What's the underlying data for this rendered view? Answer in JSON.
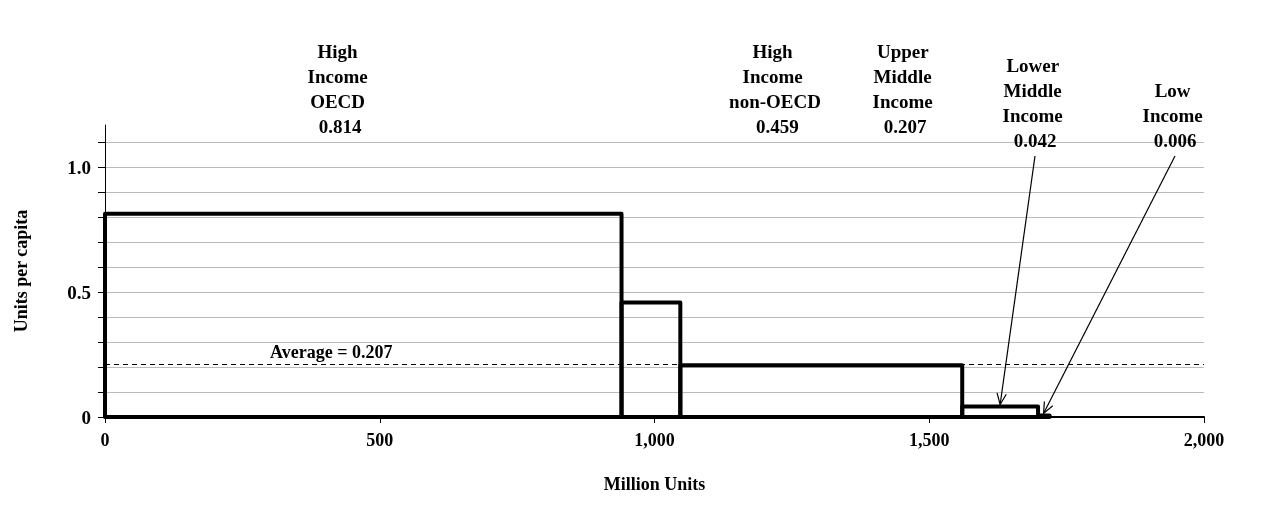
{
  "chart_data": {
    "type": "histogram",
    "xlabel": "Million Units",
    "ylabel": "Units per capita",
    "bins": [
      0,
      940,
      1047,
      1560,
      1698,
      1719
    ],
    "values": [
      0.814,
      0.459,
      0.207,
      0.042,
      0.006
    ],
    "color": "#000000",
    "annotations": [
      "High Income OECD 0.814",
      "High Income non-OECD 0.459",
      "Upper Middle Income 0.207",
      {
        "text": "Lower Middle Income 0.042",
        "x": 1629,
        "y": 0.042
      },
      {
        "text": "Low Income 0.006",
        "x": 1708,
        "y": 0.006
      }
    ],
    "xlim": [
      0,
      2000
    ],
    "xticks": [
      0,
      500,
      {
        "value": 1000,
        "label": "1,000"
      },
      {
        "value": 1500,
        "label": "1,500"
      },
      {
        "value": 2000,
        "label": "2,000"
      }
    ],
    "ylim": [
      0,
      1.17
    ],
    "yticks": [
      0,
      {
        "value": 0.1,
        "label": null
      },
      {
        "value": 0.2,
        "label": null
      },
      {
        "value": 0.3,
        "label": null
      },
      {
        "value": 0.4,
        "label": null
      },
      0.5,
      {
        "value": 0.6,
        "label": null
      },
      {
        "value": 0.7,
        "label": null
      },
      {
        "value": 0.8,
        "label": null
      },
      {
        "value": 0.9,
        "label": null
      },
      {
        "value": 1,
        "label": "1.0"
      },
      {
        "value": 1.1,
        "label": null
      }
    ],
    "ref_lines": [
      {
        "axis": "y",
        "value": 0.207,
        "label": "Average = 0.207",
        "line_style": "dashed",
        "color": "#000000"
      }
    ],
    "grid": "y"
  }
}
